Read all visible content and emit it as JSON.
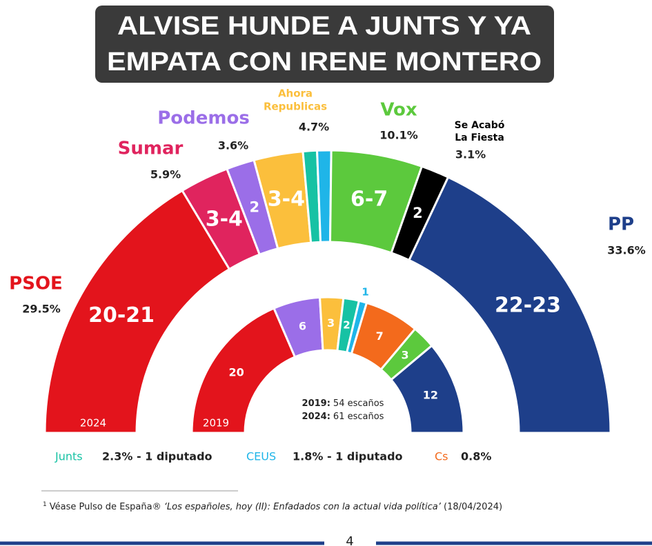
{
  "banner": [
    "ALVISE HUNDE A JUNTS Y YA",
    "EMPATA CON IRENE MONTERO"
  ],
  "chart_data": {
    "type": "parliament",
    "outer_year": "2024",
    "inner_year": "2019",
    "totals": [
      {
        "year": "2019:",
        "text": "54 escaños"
      },
      {
        "year": "2024:",
        "text": "61 escaños"
      }
    ],
    "outer": {
      "labels": [
        "20-21",
        "3-4",
        "2",
        "3-4",
        null,
        null,
        "6-7",
        "2",
        "22-23"
      ],
      "min": [
        20,
        3,
        2,
        3,
        1,
        1,
        6,
        2,
        22
      ],
      "max": [
        21,
        4,
        2,
        4,
        1,
        1,
        7,
        2,
        23
      ],
      "colors": [
        "#e3141c",
        "#e0245e",
        "#9b6ee8",
        "#fbbf3c",
        "#17c2a4",
        "#1fb5e8",
        "#5cc93d",
        "#000000",
        "#1e3f8a"
      ]
    },
    "inner": {
      "values": [
        20,
        6,
        3,
        2,
        1,
        7,
        3,
        12
      ],
      "colors": [
        "#e3141c",
        "#9b6ee8",
        "#fbbf3c",
        "#17c2a4",
        "#1fb5e8",
        "#f36a1c",
        "#5cc93d",
        "#1e3f8a"
      ]
    },
    "parties": [
      {
        "name": [
          "PSOE"
        ],
        "color": "#e3141c",
        "vote": 29.5,
        "vote_label": "29.5%"
      },
      {
        "name": [
          "Sumar"
        ],
        "color": "#e0245e",
        "vote": 5.9,
        "vote_label": "5.9%"
      },
      {
        "name": [
          "Podemos"
        ],
        "color": "#9b6ee8",
        "vote": 3.6,
        "vote_label": "3.6%"
      },
      {
        "name": [
          "Ahora",
          "Republicas"
        ],
        "color": "#fbbf3c",
        "vote": 4.7,
        "vote_label": "4.7%"
      },
      {
        "name": [
          "Vox"
        ],
        "color": "#5cc93d",
        "vote": 10.1,
        "vote_label": "10.1%"
      },
      {
        "name": [
          "Se Acabó",
          "La Fiesta"
        ],
        "color": "#000000",
        "vote": 3.1,
        "vote_label": "3.1%"
      },
      {
        "name": [
          "PP"
        ],
        "color": "#1e3f8a",
        "vote": 33.6,
        "vote_label": "33.6%"
      }
    ],
    "minor": [
      {
        "name": "Junts",
        "color": "#17c2a4",
        "detail": "2.3% - 1 diputado"
      },
      {
        "name": "CEUS",
        "color": "#1fb5e8",
        "detail": "1.8% - 1 diputado"
      },
      {
        "name": "Cs",
        "color": "#f36a1c",
        "detail": "0.8%"
      }
    ]
  },
  "footnote": {
    "mark": "1",
    "text": "Véase Pulso de España® ",
    "title": "‘Los españoles, hoy (II): Enfadados con la actual vida política’",
    "date": " (18/04/2024)"
  },
  "page_number": "4"
}
